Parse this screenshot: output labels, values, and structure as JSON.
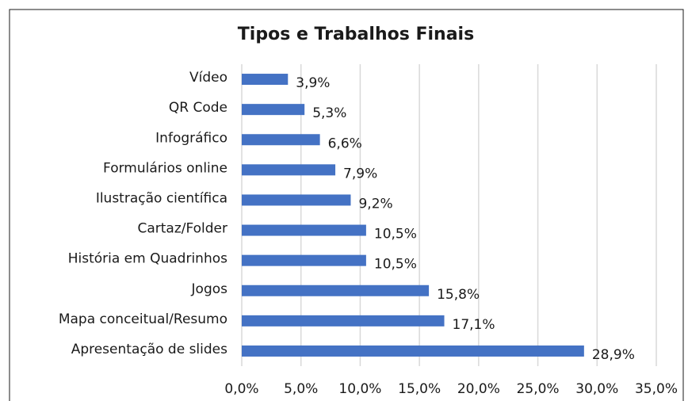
{
  "chart_data": {
    "type": "bar",
    "orientation": "horizontal",
    "title": "Tipos e Trabalhos Finais",
    "categories": [
      "Vídeo",
      "QR Code",
      "Infográfico",
      "Formulários online",
      "Ilustração científica",
      "Cartaz/Folder",
      "História em Quadrinhos",
      "Jogos",
      "Mapa conceitual/Resumo",
      "Apresentação de slides"
    ],
    "values": [
      3.9,
      5.3,
      6.6,
      7.9,
      9.2,
      10.5,
      10.5,
      15.8,
      17.1,
      28.9
    ],
    "value_labels": [
      "3,9%",
      "5,3%",
      "6,6%",
      "7,9%",
      "9,2%",
      "10,5%",
      "10,5%",
      "15,8%",
      "17,1%",
      "28,9%"
    ],
    "color": "#4472c4",
    "xlim": [
      0,
      35
    ],
    "xticks": [
      {
        "value": 0,
        "label": "0,0%"
      },
      {
        "value": 5,
        "label": "5,0%"
      },
      {
        "value": 10,
        "label": "10,0%"
      },
      {
        "value": 15,
        "label": "15,0%"
      },
      {
        "value": 20,
        "label": "20,0%"
      },
      {
        "value": 25,
        "label": "25,0%"
      },
      {
        "value": 30,
        "label": "30,0%"
      },
      {
        "value": 35,
        "label": "35,0%"
      }
    ],
    "grid": true
  }
}
